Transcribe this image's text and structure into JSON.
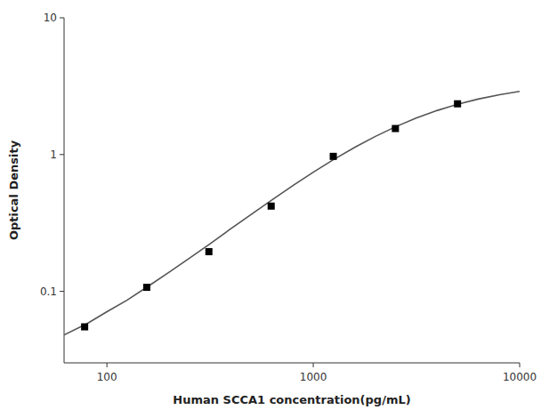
{
  "chart_data": {
    "type": "scatter",
    "xlabel": "Human SCCA1 concentration(pg/mL)",
    "ylabel": "Optical Density",
    "log": true,
    "grid": false,
    "xlim": [
      62,
      10000
    ],
    "ylim": [
      0.03,
      10
    ],
    "xticks": [
      100,
      1000,
      10000
    ],
    "yticks": [
      0.1,
      1,
      10
    ],
    "series": [
      {
        "type": "line",
        "color": "#555555",
        "line_style": "solid",
        "x": [
          62,
          80,
          100,
          125,
          160,
          200,
          250,
          315,
          400,
          500,
          630,
          800,
          1000,
          1250,
          1600,
          2000,
          2500,
          3150,
          4000,
          5000,
          6300,
          8000,
          10000
        ],
        "values": [
          0.048,
          0.058,
          0.071,
          0.086,
          0.11,
          0.138,
          0.174,
          0.222,
          0.288,
          0.365,
          0.466,
          0.596,
          0.743,
          0.916,
          1.137,
          1.358,
          1.595,
          1.847,
          2.104,
          2.332,
          2.547,
          2.742,
          2.898
        ]
      },
      {
        "type": "scatter",
        "color": "black",
        "marker": "square",
        "x": [
          78,
          156,
          312,
          625,
          1250,
          2500,
          5000
        ],
        "values": [
          0.055,
          0.107,
          0.195,
          0.42,
          0.97,
          1.55,
          2.35
        ]
      }
    ]
  }
}
